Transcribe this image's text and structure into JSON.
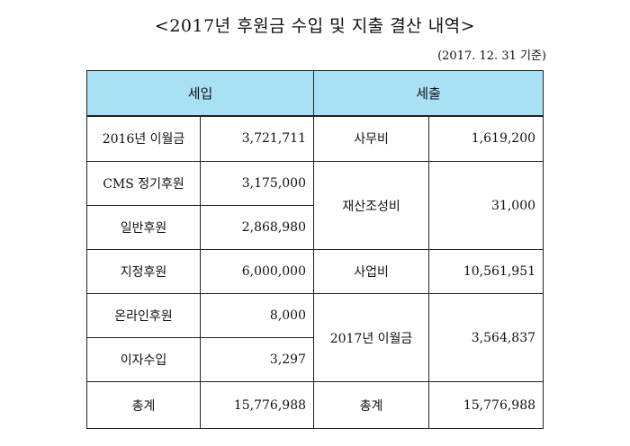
{
  "title": "<2017년 후원금 수입 및 지출 결산 내역>",
  "date_note": "(2017. 12. 31 기준)",
  "headers": {
    "income": "세입",
    "expense": "세출"
  },
  "income": [
    {
      "label": "2016년 이월금",
      "amount": "3,721,711"
    },
    {
      "label": "CMS 정기후원",
      "amount": "3,175,000"
    },
    {
      "label": "일반후원",
      "amount": "2,868,980"
    },
    {
      "label": "지정후원",
      "amount": "6,000,000"
    },
    {
      "label": "온라인후원",
      "amount": "8,000"
    },
    {
      "label": "이자수입",
      "amount": "3,297"
    }
  ],
  "expense": [
    {
      "label": "사무비",
      "amount": "1,619,200"
    },
    {
      "label": "재산조성비",
      "amount": "31,000"
    },
    {
      "label": "사업비",
      "amount": "10,561,951"
    },
    {
      "label": "2017년 이월금",
      "amount": "3,564,837"
    }
  ],
  "totals": {
    "income_label": "총계",
    "income_amount": "15,776,988",
    "expense_label": "총계",
    "expense_amount": "15,776,988"
  }
}
